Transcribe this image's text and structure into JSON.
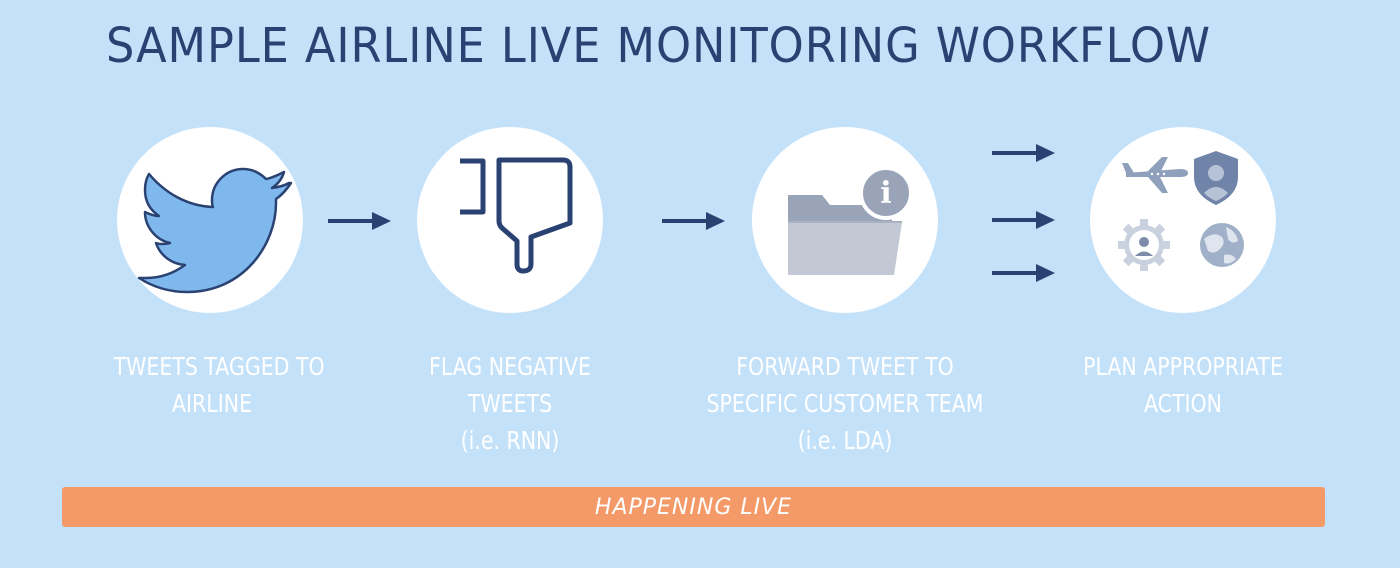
{
  "title": "SAMPLE AIRLINE LIVE MONITORING WORKFLOW",
  "steps": [
    {
      "icon": "twitter-bird-icon",
      "lines": [
        "TWEETS TAGGED TO",
        "AIRLINE"
      ]
    },
    {
      "icon": "thumbs-down-icon",
      "lines": [
        "FLAG NEGATIVE",
        "TWEETS",
        "(i.e. RNN)"
      ]
    },
    {
      "icon": "folder-info-icon",
      "lines": [
        "FORWARD TWEET TO",
        "SPECIFIC CUSTOMER TEAM",
        "(i.e. LDA)"
      ]
    },
    {
      "icon": "action-icons-cluster",
      "lines": [
        "PLAN APPROPRIATE",
        "ACTION"
      ]
    }
  ],
  "banner": {
    "label": "HAPPENING LIVE"
  },
  "colors": {
    "background": "#c4e1fa",
    "title": "#2a4272",
    "arrow": "#2a4272",
    "banner": "#f49a68",
    "twitter": "#7fb8ec"
  }
}
